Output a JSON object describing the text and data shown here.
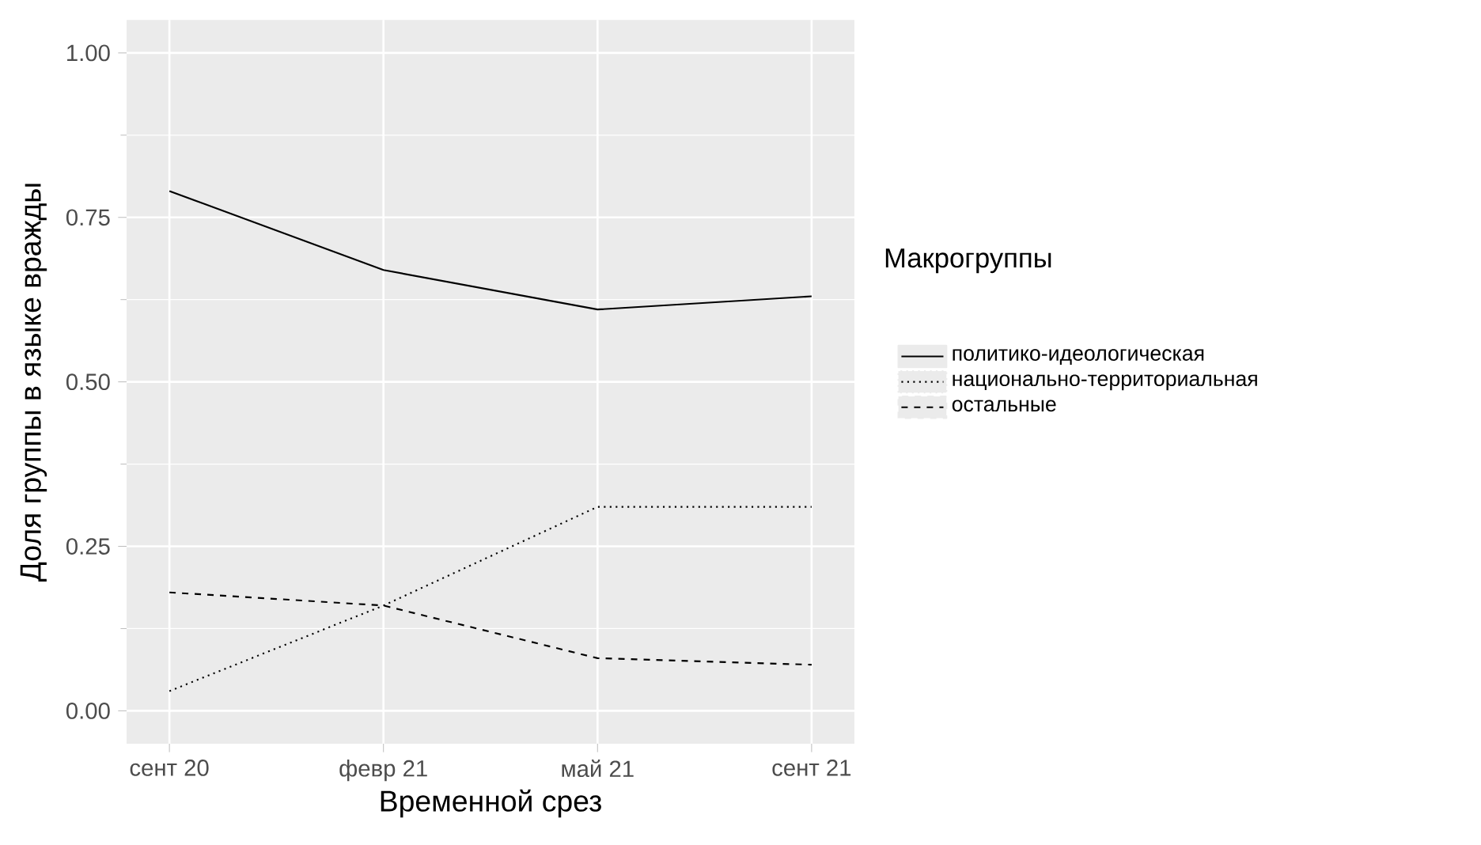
{
  "chart_data": {
    "type": "line",
    "xlabel": "Временной срез",
    "ylabel": "Доля группы в языке вражды",
    "legend_title": "Макрогруппы",
    "categories": [
      "сент 20",
      "февр 21",
      "май 21",
      "сент 21"
    ],
    "series": [
      {
        "name": "политико-идеологическая",
        "color": "#000000",
        "line_style": "solid",
        "values": [
          0.79,
          0.67,
          0.61,
          0.63
        ]
      },
      {
        "name": "национально-территориальная",
        "color": "#000000",
        "line_style": "dotted",
        "values": [
          0.03,
          0.16,
          0.31,
          0.31
        ]
      },
      {
        "name": "остальные",
        "color": "#000000",
        "line_style": "dashed",
        "values": [
          0.18,
          0.16,
          0.08,
          0.07
        ]
      }
    ],
    "ylim": [
      -0.05,
      1.05
    ],
    "yticks": [
      {
        "value": 0,
        "label": "0.00"
      },
      {
        "value": 0.25,
        "label": "0.25"
      },
      {
        "value": 0.5,
        "label": "0.50"
      },
      {
        "value": 0.75,
        "label": "0.75"
      },
      {
        "value": 1,
        "label": "1.00"
      }
    ],
    "grid": true,
    "legend": "right",
    "marker": "none"
  }
}
